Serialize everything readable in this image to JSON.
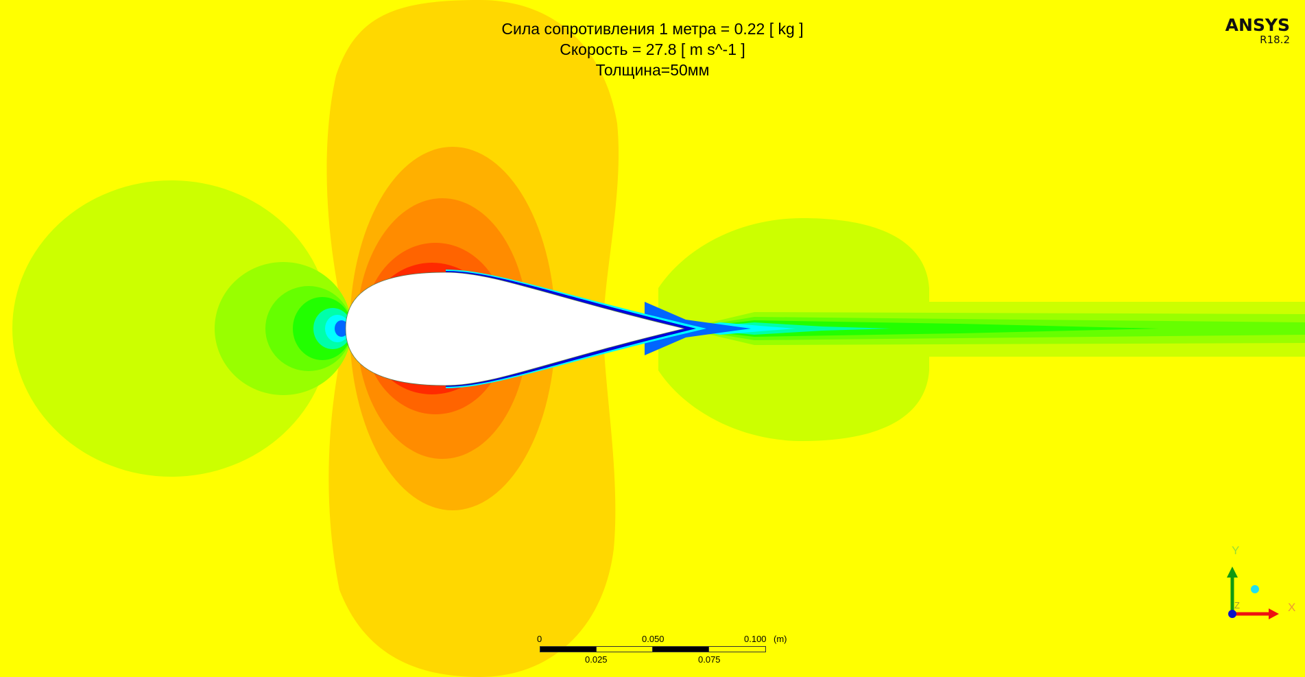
{
  "title": {
    "line1": "Сила сопротивления 1 метра = 0.22 [ kg ]",
    "line2": "Скорость = 27.8 [ m s^-1 ]",
    "line3": "Толщина=50мм"
  },
  "logo": {
    "brand": "ANSYS",
    "version": "R18.2"
  },
  "scale_bar": {
    "top_labels": [
      "0",
      "0.050",
      "0.100"
    ],
    "bottom_labels": [
      "0.025",
      "0.075"
    ],
    "unit": "(m)"
  },
  "axis_triad": {
    "x_label": "X",
    "y_label": "Y",
    "z_label": "Z"
  },
  "colors": {
    "background": "#ffff00",
    "high_1": "#ffd800",
    "high_2": "#ffb000",
    "high_3": "#ff8c00",
    "high_4": "#ff6400",
    "high_5": "#ff2a00",
    "low_1": "#ccff00",
    "low_2": "#99ff00",
    "low_3": "#66ff00",
    "low_4": "#22ff00",
    "low_5": "#00ffaa",
    "low_6": "#00ffff",
    "low_7": "#0066ff",
    "low_8": "#0000dd"
  }
}
